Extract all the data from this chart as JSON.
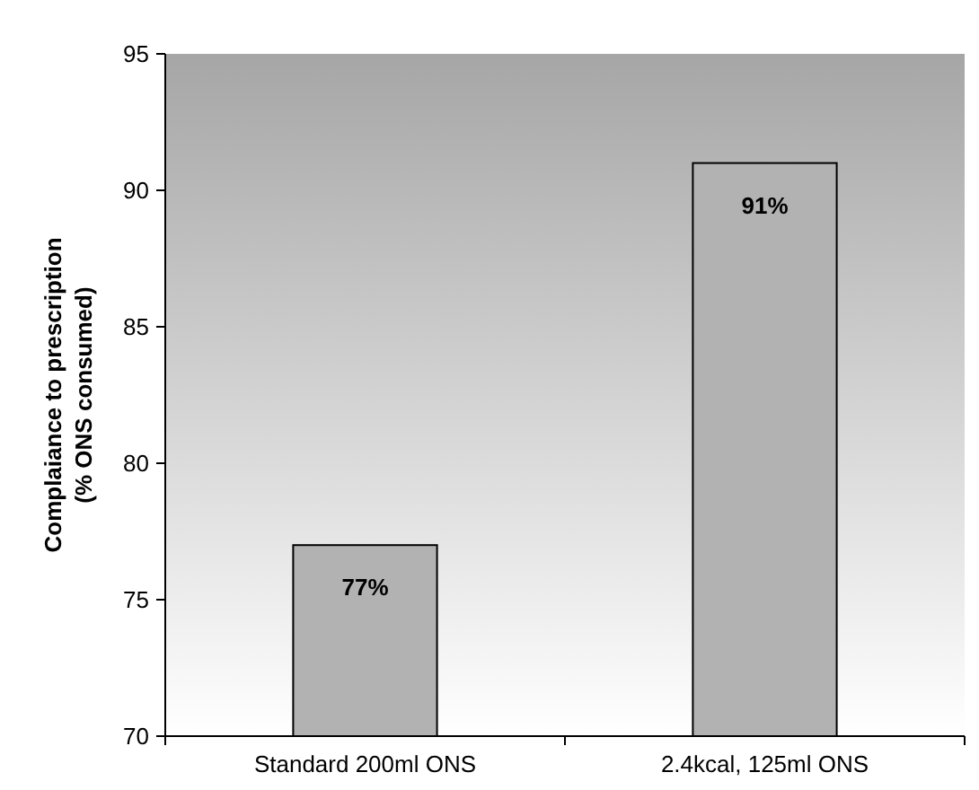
{
  "chart_data": {
    "type": "bar",
    "ylabel": "Complaiance to prescription\n(% ONS consumed)",
    "categories": [
      "Standard 200ml ONS",
      "2.4kcal, 125ml ONS"
    ],
    "values": [
      77,
      91
    ],
    "color": "#b2b2b2",
    "value_labels": [
      "77%",
      "91%"
    ],
    "ylim": [
      70,
      95
    ],
    "yticks": [
      70,
      75,
      80,
      85,
      90,
      95
    ],
    "grid": false
  }
}
